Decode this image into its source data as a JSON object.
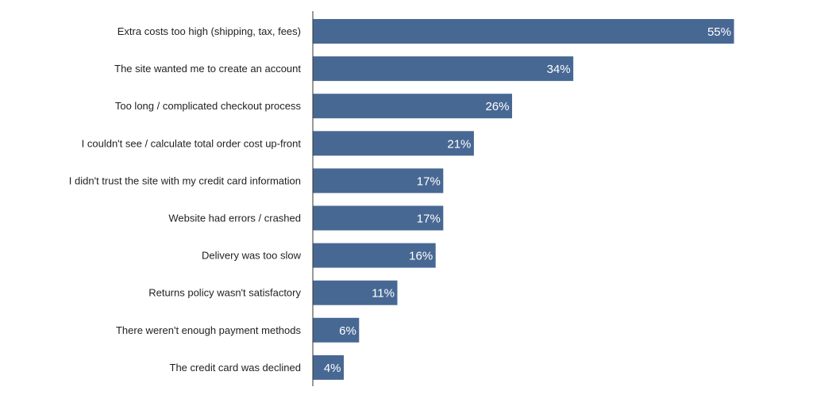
{
  "colors": {
    "bar": "#486894",
    "axis": "#333333",
    "value_text": "#ffffff",
    "label_text": "#1f1f1f"
  },
  "chart_data": {
    "type": "bar",
    "orientation": "horizontal",
    "title": "",
    "xlabel": "",
    "ylabel": "",
    "xlim": [
      0,
      55
    ],
    "grid": false,
    "legend": "none",
    "categories": [
      "Extra costs too high (shipping, tax, fees)",
      "The site wanted me to create an account",
      "Too long / complicated checkout process",
      "I couldn't see / calculate total order cost up-front",
      "I didn't trust the site with my credit card information",
      "Website had errors / crashed",
      "Delivery was too slow",
      "Returns policy wasn't satisfactory",
      "There weren't enough payment methods",
      "The credit card was declined"
    ],
    "values": [
      55,
      34,
      26,
      21,
      17,
      17,
      16,
      11,
      6,
      4
    ],
    "value_labels": [
      "55%",
      "34%",
      "26%",
      "21%",
      "17%",
      "17%",
      "16%",
      "11%",
      "6%",
      "4%"
    ]
  }
}
